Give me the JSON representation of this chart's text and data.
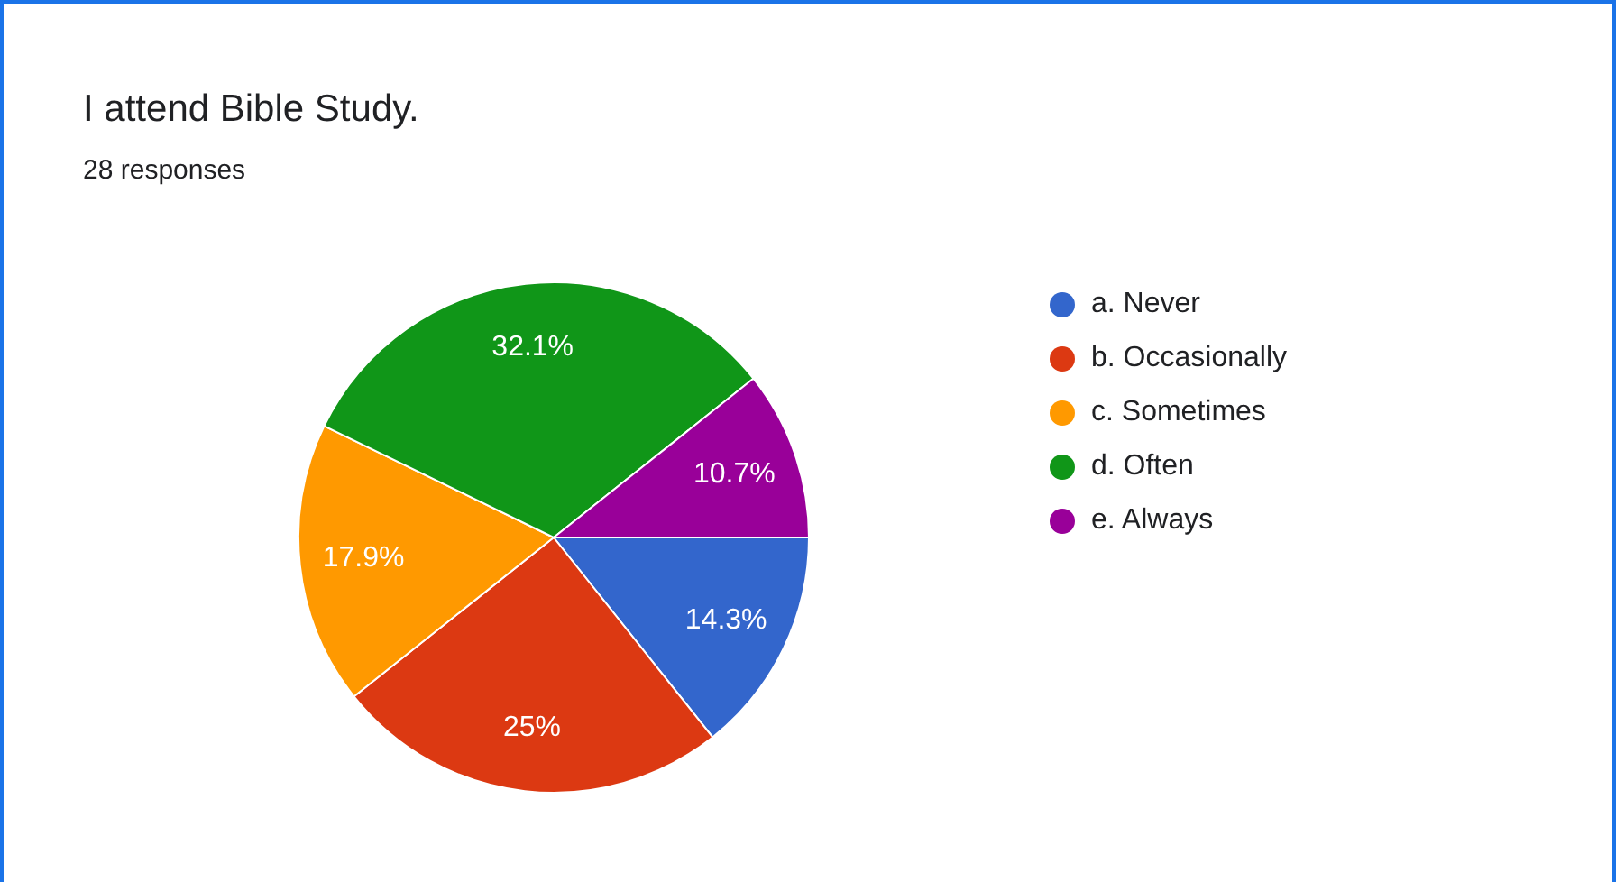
{
  "chart_data": {
    "type": "pie",
    "title": "I attend Bible Study.",
    "subtitle": "28 responses",
    "categories": [
      "a. Never",
      "b. Occasionally",
      "c. Sometimes",
      "d. Often",
      "e. Always"
    ],
    "values": [
      14.3,
      25,
      17.9,
      32.1,
      10.7
    ],
    "colors": [
      "#3366cc",
      "#dc3912",
      "#ff9900",
      "#109618",
      "#990099"
    ],
    "value_labels": [
      "14.3%",
      "25%",
      "17.9%",
      "32.1%",
      "10.7%"
    ],
    "legend": "top right"
  }
}
